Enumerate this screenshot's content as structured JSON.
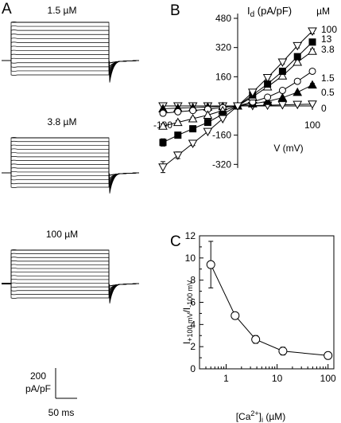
{
  "panels": {
    "A": {
      "letter": "A",
      "labels": [
        "1.5 µM",
        "3.8 µM",
        "100 µM"
      ],
      "scale_bar_y": "200",
      "scale_bar_y_unit": "pA/pF",
      "scale_bar_x": "50 ms"
    },
    "B": {
      "letter": "B",
      "legend_title": "µM",
      "legend_entries": [
        "100",
        "13",
        "3.8",
        "1.5",
        "0.5",
        "0"
      ]
    },
    "C": {
      "letter": "C",
      "ylabel_main": "I",
      "ylabel_sub1": "+100 mV",
      "ylabel_sep": "/I",
      "ylabel_sub2": "-100 mV",
      "xlabel_pre": "[Ca",
      "xlabel_sup": "2+",
      "xlabel_mid": "]",
      "xlabel_sub": "i",
      "xlabel_post": " (µM)"
    }
  },
  "chart_data": [
    {
      "type": "line",
      "panel": "A",
      "description_none": "",
      "traces": [
        "current traces at 1.5, 3.8 and 100 µM Ca2+"
      ],
      "steps_per_trace": 14
    },
    {
      "type": "line",
      "panel": "B",
      "xlabel": "V (mV)",
      "ylabel": "I",
      "ylabel_sub": "d",
      "ylabel_unit": " (pA/pF)",
      "xlim": [
        -100,
        100
      ],
      "ylim": [
        -340,
        480
      ],
      "x_ticks": [
        -100,
        100
      ],
      "x_tick_labels": [
        "-100",
        "100"
      ],
      "y_ticks": [
        480,
        320,
        160,
        -160,
        -320
      ],
      "y_tick_labels": [
        "480",
        "320",
        "160",
        "-160",
        "-320"
      ],
      "x": [
        -100,
        -80,
        -60,
        -40,
        -20,
        0,
        20,
        40,
        60,
        80,
        100
      ],
      "series": [
        {
          "name": "100",
          "marker": "tri-down-open",
          "values": [
            -335,
            -270,
            -205,
            -140,
            -70,
            0,
            75,
            155,
            240,
            330,
            410
          ],
          "errors": [
            30,
            18,
            12,
            8,
            5,
            0,
            5,
            8,
            10,
            12,
            15
          ]
        },
        {
          "name": "13",
          "marker": "square-filled",
          "values": [
            -200,
            -160,
            -125,
            -90,
            -45,
            0,
            60,
            120,
            190,
            270,
            350
          ],
          "errors": [
            20,
            14,
            10,
            8,
            5,
            0,
            5,
            7,
            9,
            11,
            12
          ]
        },
        {
          "name": "3.8",
          "marker": "tri-up-open",
          "values": [
            -110,
            -90,
            -70,
            -50,
            -25,
            0,
            50,
            105,
            165,
            240,
            300
          ],
          "errors": [
            12,
            10,
            8,
            6,
            4,
            0,
            4,
            6,
            8,
            10,
            12
          ]
        },
        {
          "name": "1.5",
          "marker": "circle-open",
          "values": [
            -40,
            -32,
            -25,
            -18,
            -9,
            0,
            22,
            48,
            85,
            135,
            190
          ],
          "errors": [
            6,
            5,
            4,
            3,
            2,
            0,
            3,
            4,
            6,
            8,
            10
          ]
        },
        {
          "name": "0.5",
          "marker": "tri-up-filled",
          "values": [
            -15,
            -12,
            -9,
            -6,
            -3,
            0,
            12,
            25,
            45,
            75,
            115
          ],
          "errors": [
            4,
            3,
            3,
            2,
            2,
            0,
            2,
            3,
            4,
            6,
            8
          ]
        },
        {
          "name": "0",
          "marker": "tri-down-open",
          "values": [
            0,
            0,
            0,
            0,
            0,
            0,
            2,
            4,
            6,
            8,
            10
          ],
          "errors": [
            2,
            2,
            2,
            2,
            2,
            0,
            2,
            2,
            2,
            2,
            2
          ]
        }
      ]
    },
    {
      "type": "line",
      "panel": "C",
      "xscale": "log",
      "xlim": [
        0.3,
        130
      ],
      "ylim": [
        0,
        12
      ],
      "x_ticks": [
        1,
        10,
        100
      ],
      "x_tick_labels": [
        "1",
        "10",
        "100"
      ],
      "y_ticks": [
        0,
        2,
        4,
        6,
        8,
        10,
        12
      ],
      "y_tick_labels": [
        "0",
        "2",
        "4",
        "6",
        "8",
        "10",
        "12"
      ],
      "x": [
        0.5,
        1.5,
        3.8,
        13,
        100
      ],
      "values": [
        9.4,
        4.8,
        2.65,
        1.6,
        1.2
      ],
      "errors": [
        2.1,
        0.2,
        0.35,
        0.35,
        0.15
      ]
    }
  ]
}
